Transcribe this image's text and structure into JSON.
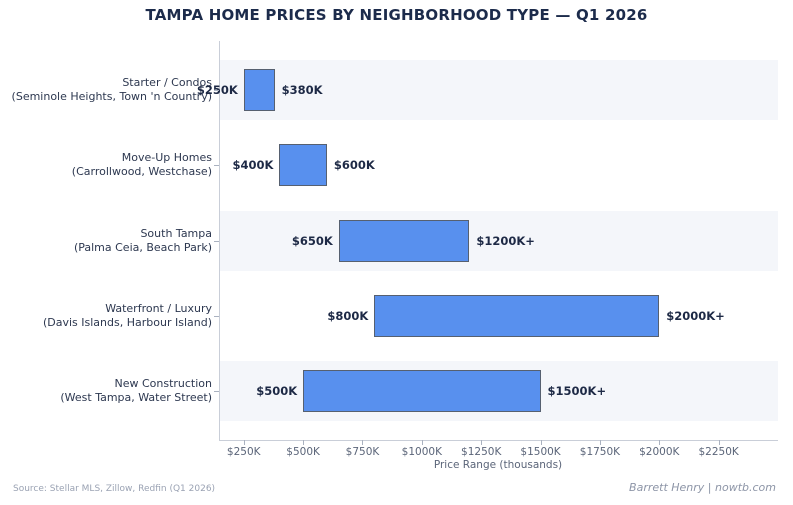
{
  "title": "TAMPA HOME PRICES BY NEIGHBORHOOD TYPE — Q1 2026",
  "chart_data": {
    "type": "bar",
    "subtype": "horizontal-range-bars",
    "rows": [
      {
        "label": "Starter / Condos",
        "sublabel": "(Seminole Heights, Town 'n Country)",
        "min": 250,
        "max": 380,
        "min_label": "$250K",
        "max_label": "$380K"
      },
      {
        "label": "Move-Up Homes",
        "sublabel": "(Carrollwood, Westchase)",
        "min": 400,
        "max": 600,
        "min_label": "$400K",
        "max_label": "$600K"
      },
      {
        "label": "South Tampa",
        "sublabel": "(Palma Ceia, Beach Park)",
        "min": 650,
        "max": 1200,
        "min_label": "$650K",
        "max_label": "$1200K+"
      },
      {
        "label": "Waterfront / Luxury",
        "sublabel": "(Davis Islands, Harbour Island)",
        "min": 800,
        "max": 2000,
        "min_label": "$800K",
        "max_label": "$2000K+"
      },
      {
        "label": "New Construction",
        "sublabel": "(West Tampa, Water Street)",
        "min": 500,
        "max": 1500,
        "min_label": "$500K",
        "max_label": "$1500K+"
      }
    ],
    "xlabel": "Price Range (thousands)",
    "xlim": [
      150,
      2500
    ],
    "xticks": [
      250,
      500,
      750,
      1000,
      1250,
      1500,
      1750,
      2000,
      2250
    ],
    "xtick_labels": [
      "$250K",
      "$500K",
      "$750K",
      "$1000K",
      "$1250K",
      "$1500K",
      "$1750K",
      "$2000K",
      "$2250K"
    ],
    "grid": "off",
    "legend": "none",
    "colors": {
      "bar_fill": "#5890ee",
      "bar_edge": "#566070",
      "stripe": "#f4f6fa",
      "axis_line": "#c9ced8",
      "tick_mark": "#aab2c0",
      "title_text": "#1c2b4b",
      "value_text": "#1d2945",
      "category_text": "#2d3850",
      "tick_text": "#5b6579"
    }
  },
  "footer": {
    "source": "Source: Stellar MLS, Zillow, Redfin (Q1 2026)",
    "credit": "Barrett Henry | nowtb.com"
  }
}
